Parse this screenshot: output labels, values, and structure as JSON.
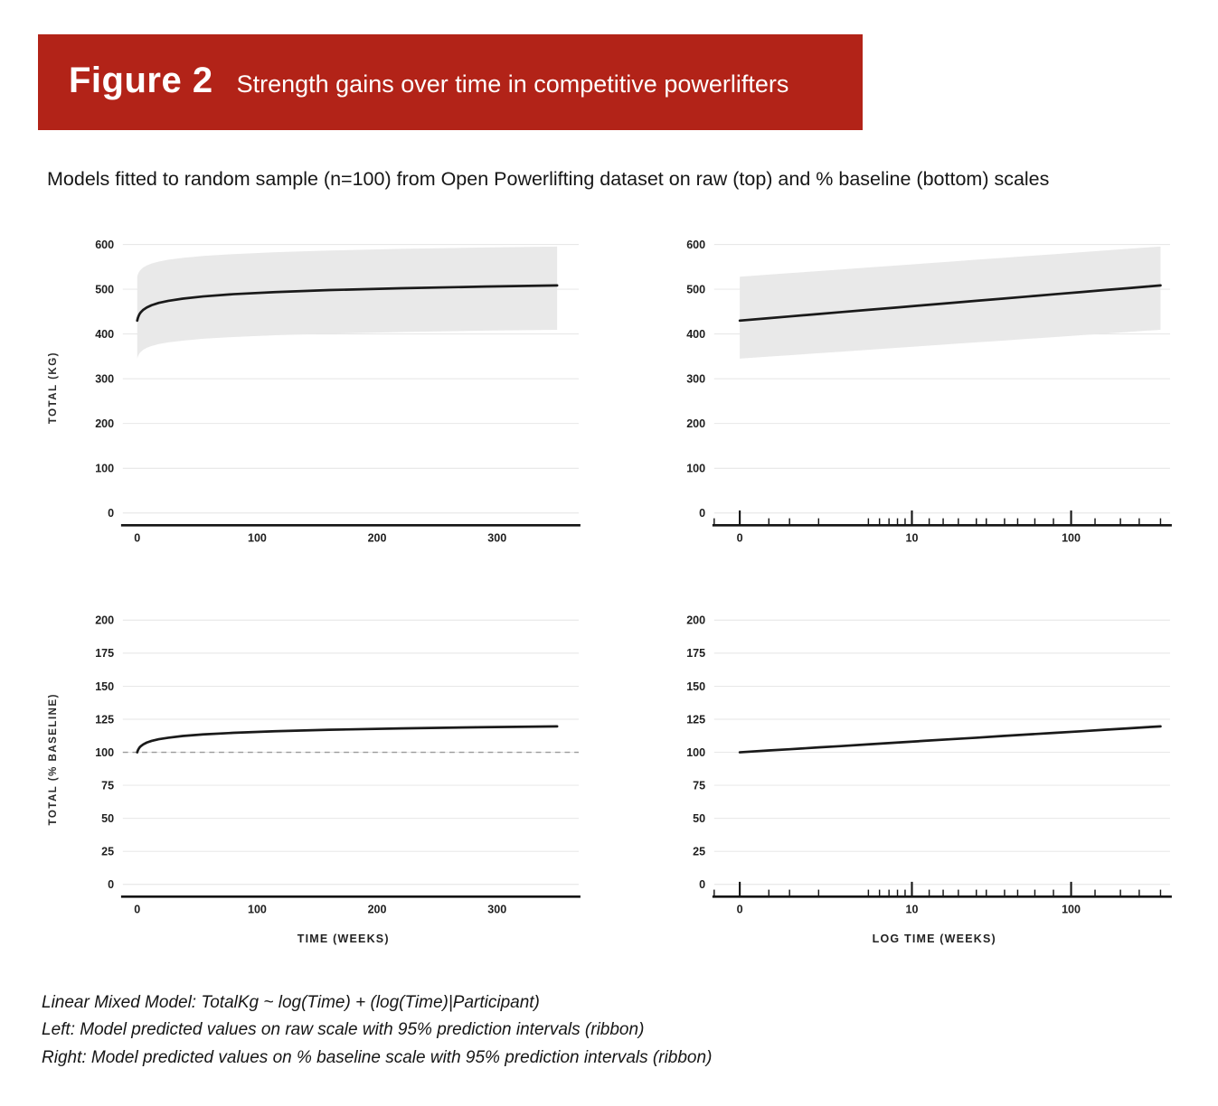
{
  "banner": {
    "label": "Figure 2",
    "title": "Strength gains over time in competitive powerlifters",
    "bg_color": "#b22318",
    "text_color": "#ffffff"
  },
  "subtitle": "Models fitted to random sample (n=100) from Open Powerlifting dataset on raw (top) and % baseline (bottom) scales",
  "footnotes": [
    "Linear Mixed Model: TotalKg ~ log(Time) + (log(Time)|Participant)",
    "Left: Model predicted values on raw scale with 95% prediction intervals (ribbon)",
    "Right: Model predicted values on % baseline scale with 95% prediction intervals (ribbon)"
  ],
  "colors": {
    "line": "#1a1a1a",
    "ribbon": "#e9e9e9",
    "grid": "#e4e4e4",
    "axis": "#151515",
    "baseline_dash": "#9a9a9a"
  },
  "chart_data": [
    {
      "id": "raw-time-linear",
      "type": "line",
      "x_scale": "linear",
      "xlabel": "",
      "ylabel": "TOTAL (KG)",
      "x_domain": [
        -12,
        368
      ],
      "x_ticks": [
        0,
        100,
        200,
        300
      ],
      "y_domain": [
        0,
        620
      ],
      "y_ticks": [
        0,
        100,
        200,
        300,
        400,
        500,
        600
      ],
      "x": [
        0,
        0.5,
        1,
        2,
        3,
        5,
        8,
        12,
        18,
        26,
        38,
        55,
        80,
        115,
        160,
        220,
        290,
        350
      ],
      "line": [
        430,
        435.4,
        439.3,
        444.7,
        448.6,
        454,
        459.4,
        464.4,
        469.5,
        474.2,
        479.1,
        483.9,
        488.9,
        493.7,
        498.1,
        502.3,
        506,
        508.5
      ],
      "ribbon_lower": [
        345,
        349.5,
        352.6,
        357.1,
        360.2,
        364.7,
        369.2,
        373.2,
        377.4,
        381.3,
        385.3,
        389.3,
        393.3,
        397.3,
        400.9,
        404.4,
        407.4,
        409.5
      ],
      "ribbon_upper": [
        528,
        532.7,
        536,
        540.6,
        543.9,
        548.6,
        553.3,
        557.5,
        561.9,
        565.9,
        570.1,
        574.3,
        578.5,
        582.7,
        586.4,
        590.1,
        593.2,
        595.4
      ]
    },
    {
      "id": "raw-time-log",
      "type": "line",
      "x_scale": "log1p",
      "xlabel": "",
      "ylabel": "",
      "x_domain": [
        -0.3,
        400
      ],
      "x_ticks": [
        0,
        10,
        100
      ],
      "y_domain": [
        0,
        620
      ],
      "y_ticks": [
        0,
        100,
        200,
        300,
        400,
        500,
        600
      ],
      "x": [
        0,
        0.5,
        1,
        2,
        3,
        5,
        8,
        12,
        18,
        26,
        38,
        55,
        80,
        115,
        160,
        220,
        290,
        350
      ],
      "line": [
        430,
        435.4,
        439.3,
        444.7,
        448.6,
        454,
        459.4,
        464.4,
        469.5,
        474.2,
        479.1,
        483.9,
        488.9,
        493.7,
        498.1,
        502.3,
        506,
        508.5
      ],
      "ribbon_lower": [
        345,
        349.5,
        352.6,
        357.1,
        360.2,
        364.7,
        369.2,
        373.2,
        377.4,
        381.3,
        385.3,
        389.3,
        393.3,
        397.3,
        400.9,
        404.4,
        407.4,
        409.5
      ],
      "ribbon_upper": [
        528,
        532.7,
        536,
        540.6,
        543.9,
        548.6,
        553.3,
        557.5,
        561.9,
        565.9,
        570.1,
        574.3,
        578.5,
        582.7,
        586.4,
        590.1,
        593.2,
        595.4
      ],
      "rug_weeks": [
        -0.3,
        0,
        0.5,
        1,
        2,
        5,
        6,
        7,
        8,
        9,
        10,
        13,
        16,
        20,
        26,
        30,
        39,
        47,
        60,
        78,
        100,
        140,
        200,
        260,
        350
      ],
      "rug_tall": [
        0,
        10,
        100
      ]
    },
    {
      "id": "pct-baseline-linear",
      "type": "line",
      "x_scale": "linear",
      "xlabel": "TIME (WEEKS)",
      "ylabel": "TOTAL (% BASELINE)",
      "x_domain": [
        -12,
        368
      ],
      "x_ticks": [
        0,
        100,
        200,
        300
      ],
      "y_domain": [
        0,
        210
      ],
      "y_ticks": [
        0,
        25,
        50,
        75,
        100,
        125,
        150,
        175,
        200
      ],
      "baseline_y": 100,
      "x": [
        0,
        0.5,
        1,
        2,
        3,
        5,
        8,
        12,
        18,
        26,
        38,
        55,
        80,
        115,
        160,
        220,
        290,
        350
      ],
      "line": [
        100,
        101.4,
        102.3,
        103.7,
        104.6,
        106,
        107.4,
        108.6,
        109.9,
        111,
        112.3,
        113.5,
        114.7,
        115.9,
        117,
        118.1,
        119,
        119.6
      ]
    },
    {
      "id": "pct-baseline-log",
      "type": "line",
      "x_scale": "log1p",
      "xlabel": "LOG TIME (WEEKS)",
      "ylabel": "",
      "x_domain": [
        -0.3,
        400
      ],
      "x_ticks": [
        0,
        10,
        100
      ],
      "y_domain": [
        0,
        210
      ],
      "y_ticks": [
        0,
        25,
        50,
        75,
        100,
        125,
        150,
        175,
        200
      ],
      "x": [
        0,
        0.5,
        1,
        2,
        3,
        5,
        8,
        12,
        18,
        26,
        38,
        55,
        80,
        115,
        160,
        220,
        290,
        350
      ],
      "line": [
        100,
        101.4,
        102.3,
        103.7,
        104.6,
        106,
        107.4,
        108.6,
        109.9,
        111,
        112.3,
        113.5,
        114.7,
        115.9,
        117,
        118.1,
        119,
        119.6
      ],
      "rug_weeks": [
        -0.3,
        0,
        0.5,
        1,
        2,
        5,
        6,
        7,
        8,
        9,
        10,
        13,
        16,
        20,
        26,
        30,
        39,
        47,
        60,
        78,
        100,
        140,
        200,
        260,
        350
      ],
      "rug_tall": [
        0,
        10,
        100
      ]
    }
  ]
}
